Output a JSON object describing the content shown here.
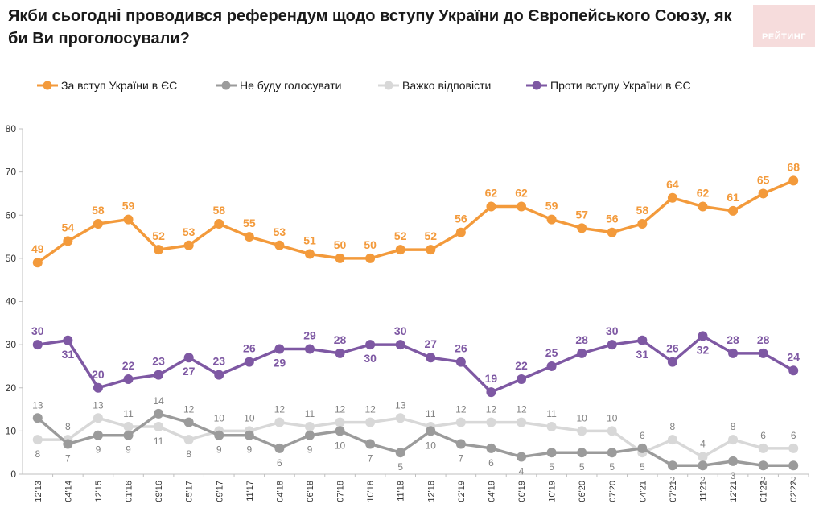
{
  "header": {
    "title": "Якби сьогодні проводився референдум щодо вступу України до Європейського Союзу, як би Ви проголосували?",
    "logo": "РЕЙТИНГ"
  },
  "chart_data": {
    "type": "line",
    "categories": [
      "12'13",
      "04'14",
      "12'15",
      "01'16",
      "09'16",
      "05'17",
      "09'17",
      "11'17",
      "04'18",
      "06'18",
      "07'18",
      "10'18",
      "11'18",
      "12'18",
      "02'19",
      "04'19",
      "06'19",
      "10'19",
      "06'20",
      "07'20",
      "04'21",
      "07'21",
      "11'21",
      "12'21",
      "01'22",
      "02'22"
    ],
    "ylim": [
      0,
      80
    ],
    "yticks": [
      0,
      10,
      20,
      30,
      40,
      50,
      60,
      70,
      80
    ],
    "grid": false,
    "legend_position": "top",
    "series": [
      {
        "name": "За вступ України в ЄС",
        "color": "#f39a3b",
        "label_color": "#f39a3b",
        "label_bold": true,
        "values": [
          49,
          54,
          58,
          59,
          52,
          53,
          58,
          55,
          53,
          51,
          50,
          50,
          52,
          52,
          56,
          62,
          62,
          59,
          57,
          56,
          58,
          64,
          62,
          61,
          65,
          68
        ]
      },
      {
        "name": "Не буду голосувати",
        "color": "#9b9b9b",
        "label_color": "#808080",
        "label_bold": false,
        "values": [
          13,
          7,
          9,
          9,
          14,
          12,
          9,
          9,
          6,
          9,
          10,
          7,
          5,
          10,
          7,
          6,
          4,
          5,
          5,
          5,
          6,
          2,
          2,
          3,
          2,
          2
        ]
      },
      {
        "name": "Важко відповісти",
        "color": "#d8d8d8",
        "label_color": "#808080",
        "label_bold": false,
        "values": [
          8,
          8,
          13,
          11,
          11,
          8,
          10,
          10,
          12,
          11,
          12,
          12,
          13,
          11,
          12,
          12,
          12,
          11,
          10,
          10,
          5,
          8,
          4,
          8,
          6,
          6
        ]
      },
      {
        "name": "Проти вступу України в ЄС",
        "color": "#7e58a3",
        "label_color": "#7e58a3",
        "label_bold": true,
        "values": [
          30,
          31,
          20,
          22,
          23,
          27,
          23,
          26,
          29,
          29,
          28,
          30,
          30,
          27,
          26,
          19,
          22,
          25,
          28,
          30,
          31,
          26,
          32,
          28,
          28,
          24
        ]
      }
    ]
  }
}
